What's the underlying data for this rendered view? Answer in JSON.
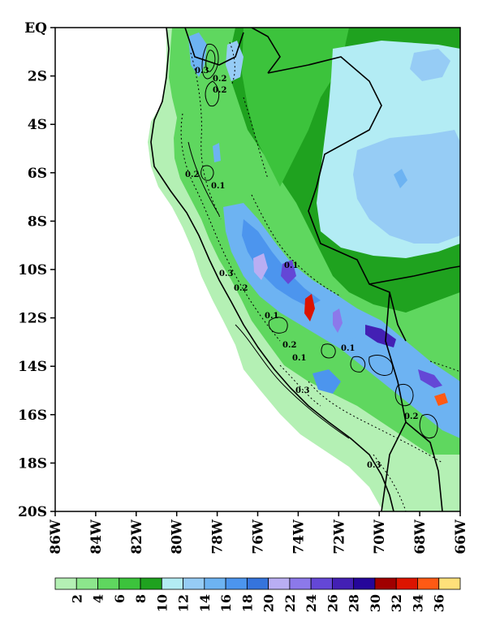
{
  "map": {
    "lat_ticks": [
      "EQ",
      "2S",
      "4S",
      "6S",
      "8S",
      "10S",
      "12S",
      "14S",
      "16S",
      "18S",
      "20S"
    ],
    "lon_ticks": [
      "86W",
      "84W",
      "82W",
      "80W",
      "78W",
      "76W",
      "74W",
      "72W",
      "70W",
      "68W",
      "66W"
    ],
    "lon_range": [
      -86,
      -66
    ],
    "lat_range": [
      0,
      -20
    ],
    "contour_labels": [
      "0.3",
      "0.2",
      "0.2",
      "0.1",
      "0.3",
      "0.2",
      "0.1",
      "0.2",
      "0.1",
      "0.1",
      "0.3",
      "0.2",
      "0.1",
      "0.3",
      "0.2"
    ]
  },
  "colorbar": {
    "levels": [
      2,
      4,
      6,
      8,
      10,
      12,
      14,
      16,
      18,
      20,
      22,
      24,
      26,
      28,
      30,
      32,
      34,
      36
    ],
    "labels": [
      "2",
      "4",
      "6",
      "8",
      "10",
      "12",
      "14",
      "16",
      "18",
      "20",
      "22",
      "24",
      "26",
      "28",
      "30",
      "32",
      "34",
      "36"
    ],
    "colors": [
      "#b4f0b4",
      "#8ce68c",
      "#5fd75f",
      "#3cc33c",
      "#1fa21f",
      "#b3ecf4",
      "#96ccf5",
      "#6db3f2",
      "#4c95ee",
      "#3574dc",
      "#b9aef3",
      "#8c79ea",
      "#6447d6",
      "#4320b4",
      "#25069a",
      "#a00000",
      "#dc1400",
      "#ff5a14",
      "#ffe07a"
    ]
  }
}
